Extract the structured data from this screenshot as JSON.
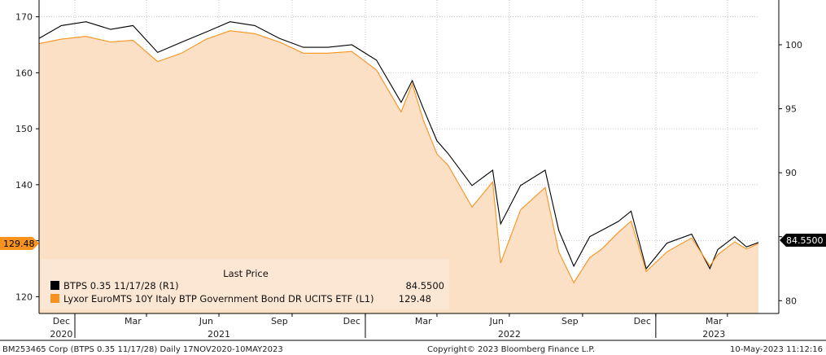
{
  "chart_data": {
    "type": "line",
    "title": "",
    "left_axis": {
      "ticks": [
        120,
        130,
        140,
        150,
        160,
        170
      ],
      "tick_labels": [
        "120",
        "",
        "140",
        "150",
        "160",
        "170"
      ],
      "range": [
        117,
        173
      ]
    },
    "right_axis": {
      "ticks": [
        80,
        85,
        90,
        95,
        100
      ],
      "tick_labels": [
        "80",
        "",
        "90",
        "95",
        "100"
      ],
      "range": [
        79,
        103.5
      ]
    },
    "x_axis": {
      "months": [
        "Dec",
        "Mar",
        "Jun",
        "Sep",
        "Dec",
        "Mar",
        "Jun",
        "Sep",
        "Dec",
        "Mar"
      ],
      "years": [
        "2020",
        "2021",
        "2022",
        "2023"
      ]
    },
    "grid": true,
    "legend": {
      "title": "Last Price",
      "placement": "bottom-left",
      "entries": [
        {
          "label": "BTPS 0.35 11/17/28  (R1)",
          "value": "84.5500",
          "color": "#000000"
        },
        {
          "label": "Lyxor EuroMTS 10Y Italy BTP Government Bond DR UCITS ETF  (L1)",
          "value": "129.48",
          "color": "#f7931e"
        }
      ]
    },
    "last_value_flags": {
      "left": "129.48",
      "right": "84.5500"
    },
    "series": [
      {
        "name": "BTPS 0.35 11/17/28",
        "axis": "right",
        "color": "#000000",
        "x": [
          "2020-11-17",
          "2020-12-15",
          "2021-01-15",
          "2021-02-15",
          "2021-03-15",
          "2021-04-15",
          "2021-05-15",
          "2021-06-15",
          "2021-07-15",
          "2021-08-15",
          "2021-09-15",
          "2021-10-15",
          "2021-11-15",
          "2021-12-15",
          "2022-01-15",
          "2022-02-15",
          "2022-03-01",
          "2022-03-15",
          "2022-04-01",
          "2022-04-15",
          "2022-05-15",
          "2022-06-10",
          "2022-06-20",
          "2022-07-15",
          "2022-08-15",
          "2022-09-01",
          "2022-09-20",
          "2022-10-10",
          "2022-10-25",
          "2022-11-15",
          "2022-12-01",
          "2022-12-20",
          "2023-01-15",
          "2023-02-15",
          "2023-03-10",
          "2023-03-20",
          "2023-04-10",
          "2023-04-25",
          "2023-05-10"
        ],
        "values": [
          100.5,
          101.5,
          101.8,
          101.2,
          101.5,
          99.4,
          100.2,
          101.0,
          101.8,
          101.5,
          100.5,
          99.8,
          99.8,
          100.0,
          98.8,
          95.5,
          97.2,
          95.0,
          92.5,
          91.5,
          89.0,
          90.2,
          86.0,
          89.0,
          90.2,
          85.5,
          82.7,
          85.0,
          85.5,
          86.2,
          87.0,
          82.5,
          84.5,
          85.2,
          82.5,
          84.0,
          85.0,
          84.2,
          84.55
        ]
      },
      {
        "name": "Lyxor EuroMTS 10Y Italy BTP Government Bond DR UCITS ETF",
        "axis": "left",
        "color": "#f7931e",
        "x": [
          "2020-11-17",
          "2020-12-15",
          "2021-01-15",
          "2021-02-15",
          "2021-03-15",
          "2021-04-15",
          "2021-05-15",
          "2021-06-15",
          "2021-07-15",
          "2021-08-15",
          "2021-09-15",
          "2021-10-15",
          "2021-11-15",
          "2021-12-15",
          "2022-01-15",
          "2022-02-15",
          "2022-03-01",
          "2022-03-15",
          "2022-04-01",
          "2022-04-15",
          "2022-05-15",
          "2022-06-10",
          "2022-06-20",
          "2022-07-15",
          "2022-08-15",
          "2022-09-01",
          "2022-09-20",
          "2022-10-10",
          "2022-10-25",
          "2022-11-15",
          "2022-12-01",
          "2022-12-20",
          "2023-01-15",
          "2023-02-15",
          "2023-03-10",
          "2023-03-20",
          "2023-04-10",
          "2023-04-25",
          "2023-05-10"
        ],
        "values": [
          165.2,
          166.0,
          166.5,
          165.5,
          165.8,
          162.0,
          163.5,
          166.0,
          167.5,
          167.0,
          165.5,
          163.5,
          163.5,
          163.8,
          160.5,
          153.0,
          158.0,
          151.5,
          145.5,
          143.5,
          136.0,
          140.5,
          126.0,
          135.5,
          139.5,
          128.0,
          122.5,
          127.0,
          128.5,
          131.5,
          133.5,
          124.5,
          128.0,
          130.5,
          125.5,
          127.5,
          129.8,
          128.5,
          129.48
        ]
      }
    ]
  },
  "footer": {
    "left": "BM253465 Corp (BTPS 0.35 11/17/28)  Daily 17NOV2020-10MAY2023",
    "center": "Copyright© 2023 Bloomberg Finance L.P.",
    "right": "10-May-2023 11:12:16"
  },
  "colors": {
    "area_fill": "#fbe0c6",
    "grid": "#c8c8c8",
    "flag_left": "#f7931e",
    "flag_right": "#000000"
  }
}
